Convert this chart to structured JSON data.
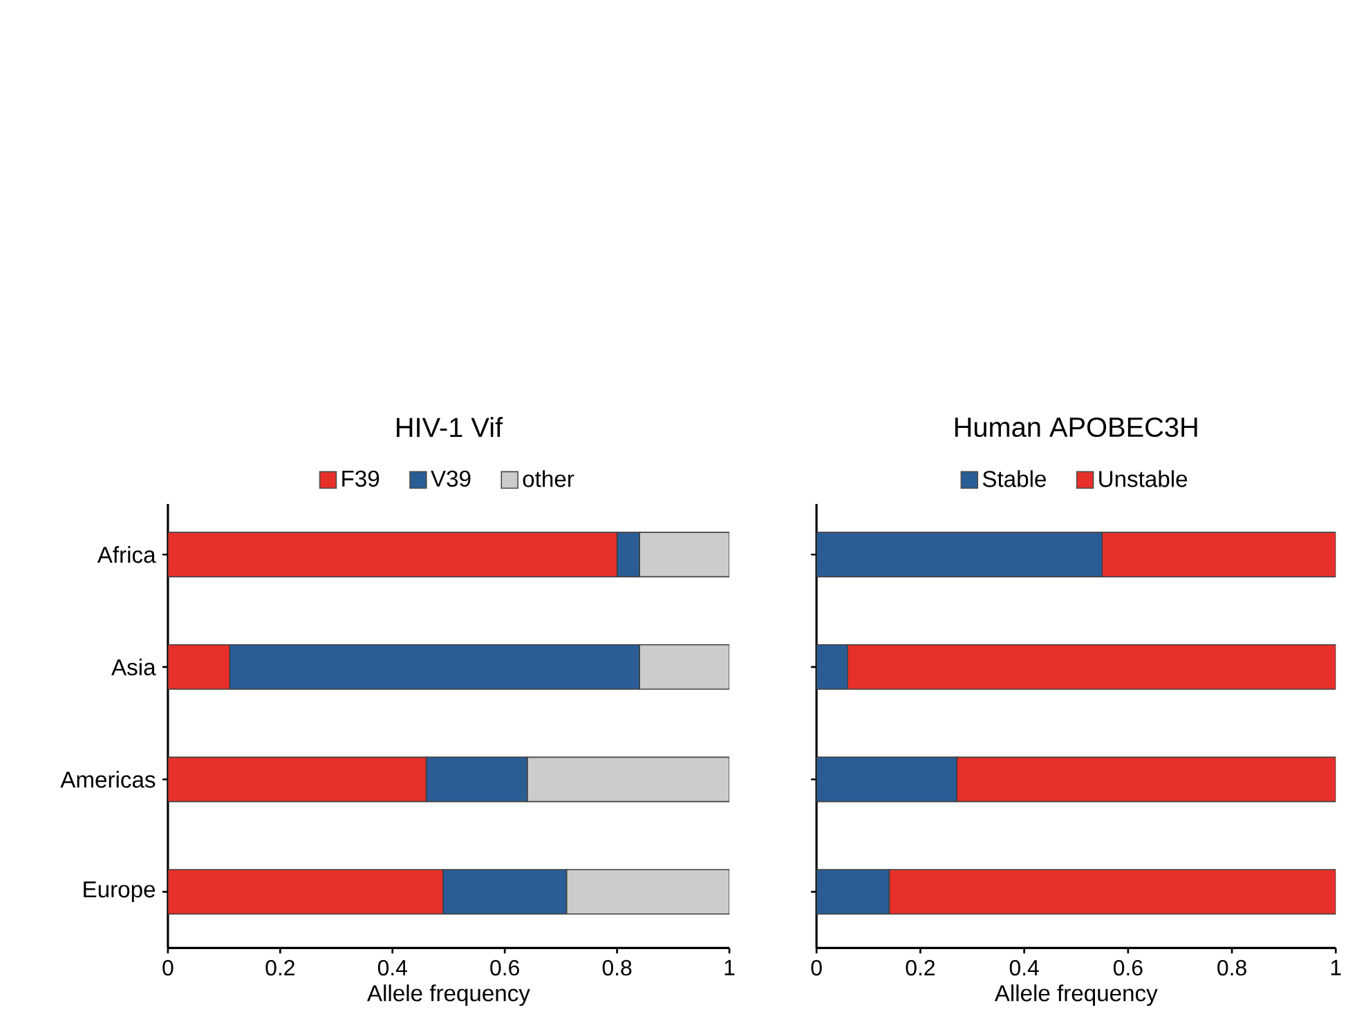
{
  "chart_data": [
    {
      "type": "bar",
      "orientation": "horizontal",
      "stacked": true,
      "title": "HIV-1 Vif",
      "xlabel": "Allele frequency",
      "categories": [
        "Africa",
        "Asia",
        "Americas",
        "Europe"
      ],
      "series": [
        {
          "name": "F39",
          "color": "#e8302a",
          "values": [
            0.8,
            0.11,
            0.46,
            0.49
          ]
        },
        {
          "name": "V39",
          "color": "#2a5d96",
          "values": [
            0.04,
            0.73,
            0.18,
            0.22
          ]
        },
        {
          "name": "other",
          "color": "#cccccc",
          "values": [
            0.16,
            0.16,
            0.36,
            0.29
          ]
        }
      ],
      "xlim": [
        0,
        1
      ],
      "xticks": [
        0,
        0.2,
        0.4,
        0.6,
        0.8,
        1
      ],
      "legend": "top"
    },
    {
      "type": "bar",
      "orientation": "horizontal",
      "stacked": true,
      "title": "Human APOBEC3H",
      "xlabel": "Allele frequency",
      "categories": [
        null,
        null,
        null,
        null
      ],
      "series": [
        {
          "name": "Stable",
          "color": "#2a5d96",
          "values": [
            0.55,
            0.06,
            0.27,
            0.14
          ]
        },
        {
          "name": "Unstable",
          "color": "#e8302a",
          "values": [
            0.45,
            0.94,
            0.73,
            0.86
          ]
        }
      ],
      "xlim": [
        0,
        1
      ],
      "xticks": [
        0,
        0.2,
        0.4,
        0.6,
        0.8,
        1
      ],
      "legend": "top",
      "tick_labels": "x"
    }
  ]
}
